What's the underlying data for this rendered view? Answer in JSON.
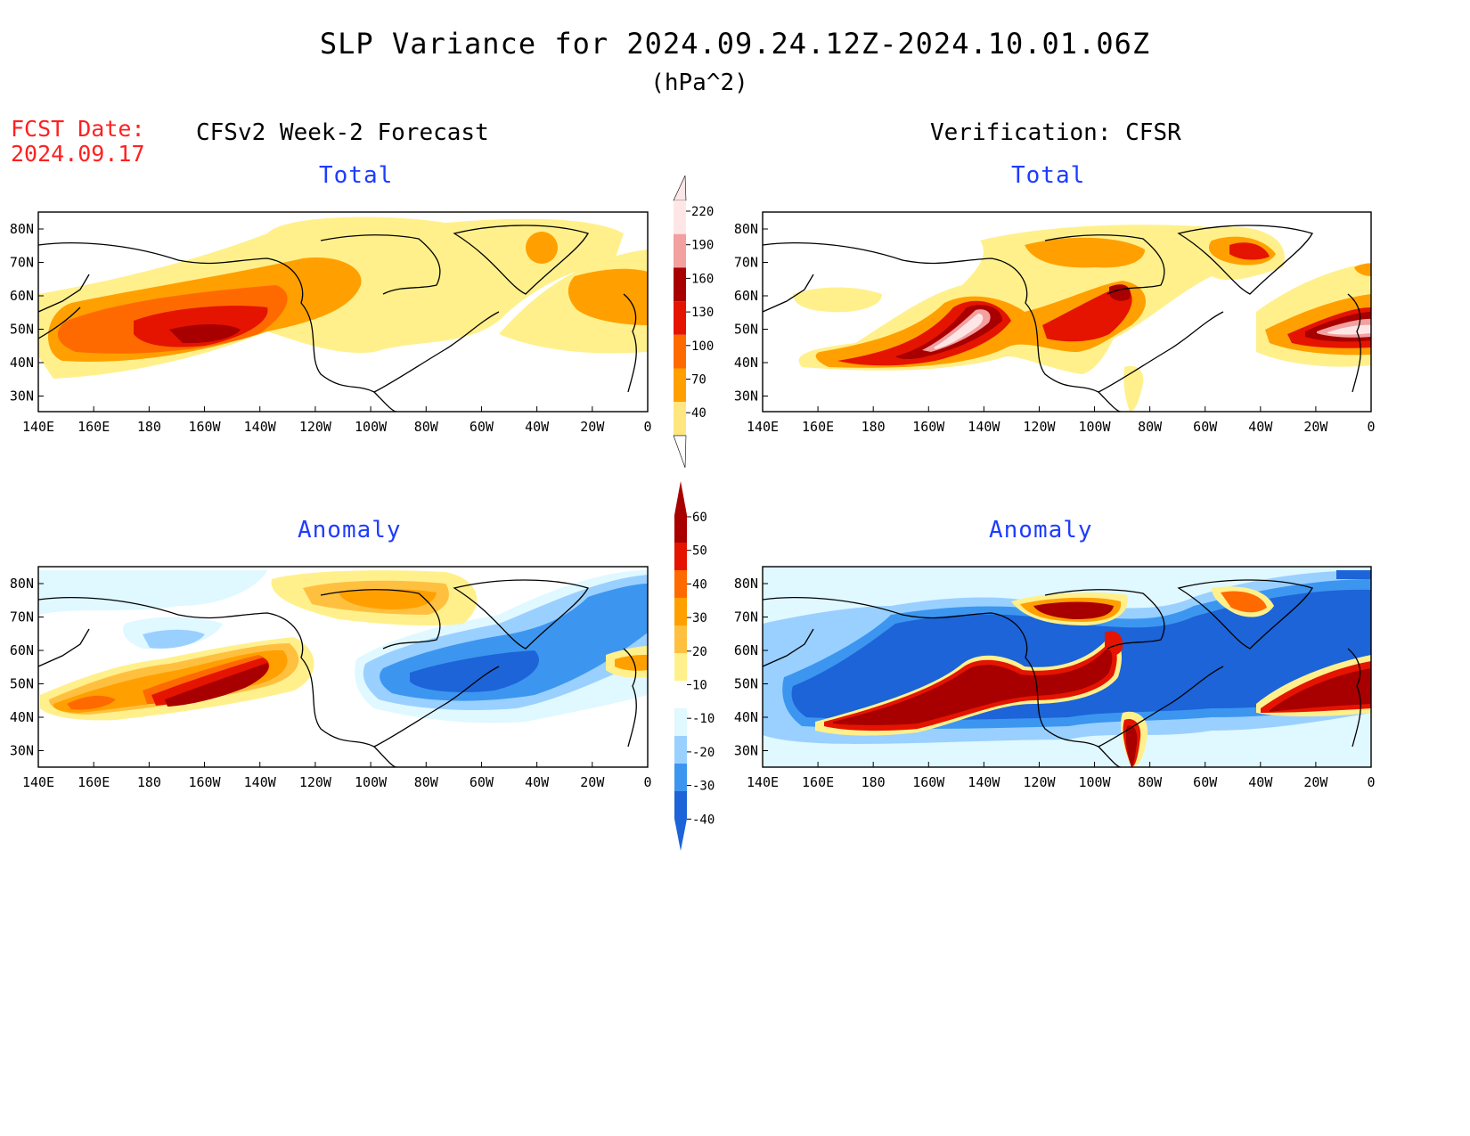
{
  "header": {
    "title": "SLP Variance for 2024.09.24.12Z-2024.10.01.06Z",
    "units": "(hPa^2)",
    "fcst_label": "FCST Date:",
    "fcst_date": "2024.09.17",
    "left_heading": "CFSv2 Week-2 Forecast",
    "right_heading": "Verification: CFSR"
  },
  "panels": {
    "top_left_title": "Total",
    "top_right_title": "Total",
    "bottom_left_title": "Anomaly",
    "bottom_right_title": "Anomaly"
  },
  "axes": {
    "lat_labels": [
      "80N",
      "70N",
      "60N",
      "50N",
      "40N",
      "30N"
    ],
    "lon_labels": [
      "140E",
      "160E",
      "180",
      "160W",
      "140W",
      "120W",
      "100W",
      "80W",
      "60W",
      "40W",
      "20W",
      "0"
    ]
  },
  "colorbars": {
    "total": {
      "labels": [
        "220",
        "190",
        "160",
        "130",
        "100",
        "70",
        "40"
      ],
      "colors": [
        "#ffe6e6",
        "#f3a0a0",
        "#a80000",
        "#e41400",
        "#ff6a00",
        "#ffa000",
        "#ffe680"
      ]
    },
    "anomaly": {
      "labels": [
        "60",
        "50",
        "40",
        "30",
        "20",
        "10",
        "-10",
        "-20",
        "-30",
        "-40"
      ],
      "colors": [
        "#a80000",
        "#e41400",
        "#ff6a00",
        "#ffa000",
        "#ffc040",
        "#fff08c",
        "#ffffff",
        "#e0f8ff",
        "#9ad0ff",
        "#3c96f0",
        "#1c64d8"
      ]
    }
  }
}
